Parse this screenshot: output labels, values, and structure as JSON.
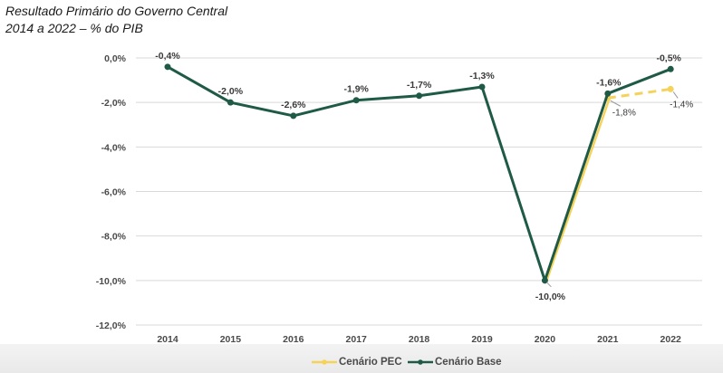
{
  "title": {
    "line1": "Resultado Primário do Governo Central",
    "line2": "2014 a 2022 – % do PIB"
  },
  "colors": {
    "base": "#1e5a46",
    "pec": "#f5d35a",
    "grid": "#d9d9d9",
    "leader": "#9a9a9a"
  },
  "chart_data": {
    "type": "line",
    "title": "Resultado Primário do Governo Central 2014 a 2022 – % do PIB",
    "xlabel": "",
    "ylabel": "",
    "categories": [
      "2014",
      "2015",
      "2016",
      "2017",
      "2018",
      "2019",
      "2020",
      "2021",
      "2022"
    ],
    "ylim": [
      -12.0,
      0.0
    ],
    "yticks": [
      0.0,
      -2.0,
      -4.0,
      -6.0,
      -8.0,
      -10.0,
      -12.0
    ],
    "ytick_labels": [
      "0,0%",
      "-2,0%",
      "-4,0%",
      "-6,0%",
      "-8,0%",
      "-10,0%",
      "-12,0%"
    ],
    "grid": true,
    "legend_position": "bottom",
    "series": [
      {
        "name": "Cenário PEC",
        "style": "dashed",
        "values": [
          null,
          null,
          null,
          null,
          null,
          null,
          -10.0,
          -1.8,
          -1.4
        ],
        "labels": [
          null,
          null,
          null,
          null,
          null,
          null,
          null,
          "-1,8%",
          "-1,4%"
        ]
      },
      {
        "name": "Cenário Base",
        "style": "solid",
        "values": [
          -0.4,
          -2.0,
          -2.6,
          -1.9,
          -1.7,
          -1.3,
          -10.0,
          -1.6,
          -0.5
        ],
        "labels": [
          "-0,4%",
          "-2,0%",
          "-2,6%",
          "-1,9%",
          "-1,7%",
          "-1,3%",
          "-10,0%",
          "-1,6%",
          "-0,5%"
        ]
      }
    ]
  },
  "legend": {
    "items": [
      {
        "label": "Cenário PEC"
      },
      {
        "label": "Cenário Base"
      }
    ]
  }
}
